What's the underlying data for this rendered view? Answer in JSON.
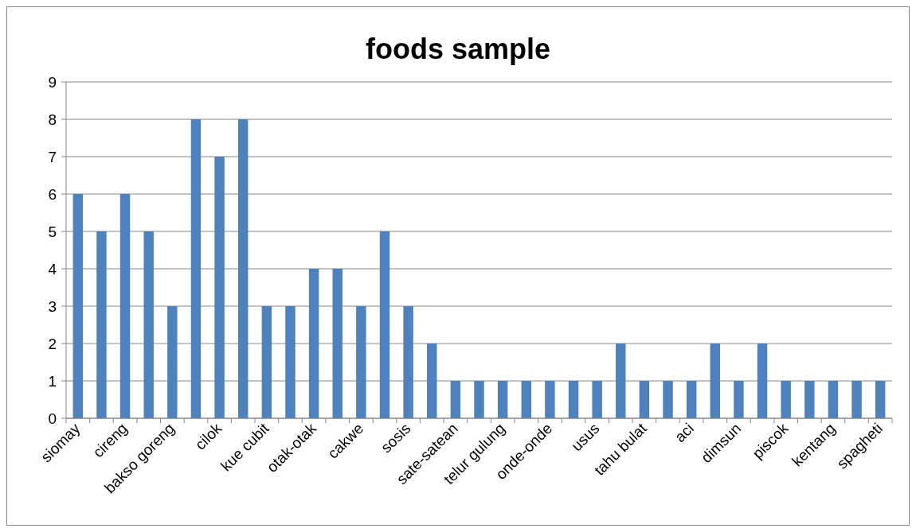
{
  "chart_data": {
    "type": "bar",
    "title": "foods sample",
    "categories": [
      "siomay",
      null,
      "cireng",
      null,
      "bakso goreng",
      null,
      "cilok",
      null,
      "kue cubit",
      null,
      "otak-otak",
      null,
      "cakwe",
      null,
      "sosis",
      null,
      "sate-satean",
      null,
      "telur gulung",
      null,
      "onde-onde",
      null,
      "usus",
      null,
      "tahu bulat",
      null,
      "aci",
      null,
      "dimsun",
      null,
      "piscok",
      null,
      "kentang",
      null,
      "spagheti"
    ],
    "values": [
      6,
      5,
      6,
      5,
      3,
      8,
      7,
      8,
      3,
      3,
      4,
      4,
      3,
      5,
      3,
      2,
      1,
      1,
      1,
      1,
      1,
      1,
      1,
      2,
      1,
      1,
      1,
      2,
      1,
      2,
      1,
      1,
      1,
      1,
      1
    ],
    "color": "#4f81bd",
    "ylim": [
      0,
      9
    ],
    "yticks": [
      0,
      1,
      2,
      3,
      4,
      5,
      6,
      7,
      8,
      9
    ],
    "grid": "y"
  }
}
